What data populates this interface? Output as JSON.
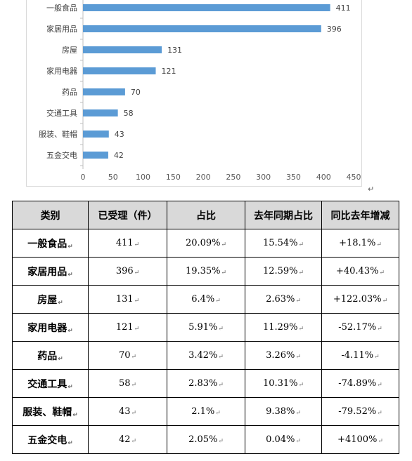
{
  "chart_data": {
    "type": "bar",
    "orientation": "horizontal",
    "categories": [
      "一般食品",
      "家居用品",
      "房屋",
      "家用电器",
      "药品",
      "交通工具",
      "服装、鞋帽",
      "五金交电"
    ],
    "values": [
      411,
      396,
      131,
      121,
      70,
      58,
      43,
      42
    ],
    "xlim": [
      0,
      450
    ],
    "xticks": [
      0,
      50,
      100,
      150,
      200,
      250,
      300,
      350,
      400,
      450
    ],
    "grid": false,
    "legend": "none",
    "bar_color": "#5b9bd5",
    "data_labels": true
  },
  "table": {
    "headers": [
      "类别",
      "已受理（件）",
      "占比",
      "去年同期占比",
      "同比去年增减"
    ],
    "rows": [
      [
        "一般食品",
        "411",
        "20.09%",
        "15.54%",
        "+18.1%"
      ],
      [
        "家居用品",
        "396",
        "19.35%",
        "12.59%",
        "+40.43%"
      ],
      [
        "房屋",
        "131",
        "6.4%",
        "2.63%",
        "+122.03%"
      ],
      [
        "家用电器",
        "121",
        "5.91%",
        "11.29%",
        "-52.17%"
      ],
      [
        "药品",
        "70",
        "3.42%",
        "3.26%",
        "-4.11%"
      ],
      [
        "交通工具",
        "58",
        "2.83%",
        "10.31%",
        "-74.89%"
      ],
      [
        "服装、鞋帽",
        "43",
        "2.1%",
        "9.38%",
        "-79.52%"
      ],
      [
        "五金交电",
        "42",
        "2.05%",
        "0.04%",
        "+4100%"
      ]
    ],
    "header_bg": "#d9d9d9"
  },
  "marks": {
    "return_mark": "↵"
  }
}
